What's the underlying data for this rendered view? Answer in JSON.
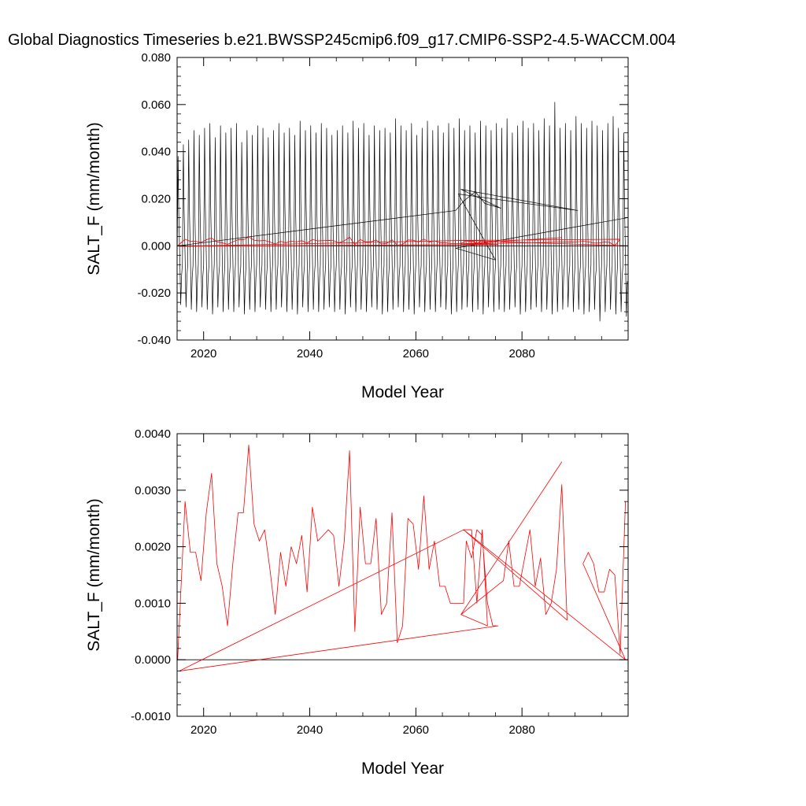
{
  "title": "Global Diagnostics Timeseries b.e21.BWSSP245cmip6.f09_g17.CMIP6-SSP2-4.5-WACCM.004",
  "colors": {
    "monthly": "#000000",
    "annual": "#ff0000",
    "zero_line": "#000000"
  },
  "chart_data": [
    {
      "type": "line",
      "panel": "top",
      "title": "Global Diagnostics Timeseries b.e21.BWSSP245cmip6.f09_g17.CMIP6-SSP2-4.5-WACCM.004",
      "xlabel": "Model Year",
      "ylabel": "SALT_F (mm/month)",
      "xlim": [
        2015,
        2100
      ],
      "ylim": [
        -0.04,
        0.08
      ],
      "xticks": [
        2020,
        2040,
        2060,
        2080
      ],
      "xtick_labels": [
        "2020",
        "2040",
        "2060",
        "2080"
      ],
      "yticks": [
        -0.04,
        -0.02,
        0.0,
        0.02,
        0.04,
        0.06,
        0.08
      ],
      "ytick_labels": [
        "-0.040",
        "-0.020",
        "0.000",
        "0.020",
        "0.040",
        "0.060",
        "0.080"
      ],
      "series": [
        {
          "name": "monthly",
          "color": "#000000",
          "pattern": "seasonal_cycle",
          "x_start": 2015.0,
          "x_end": 2100.0,
          "peaks": [
            0.038,
            0.043,
            0.045,
            0.049,
            0.047,
            0.05,
            0.052,
            0.046,
            0.051,
            0.048,
            0.05,
            0.052,
            0.044,
            0.049,
            0.047,
            0.051,
            0.05,
            0.046,
            0.049,
            0.052,
            0.048,
            0.05,
            0.047,
            0.053,
            0.049,
            0.051,
            0.048,
            0.052,
            0.05,
            0.047,
            0.049,
            0.051,
            0.048,
            0.053,
            0.05,
            0.052,
            0.047,
            0.051,
            0.049,
            0.05,
            0.048,
            0.054,
            0.051,
            0.049,
            0.052,
            0.047,
            0.05,
            0.053,
            0.049,
            0.051,
            0.048,
            0.052,
            0.05,
            0.054,
            0.049,
            0.051,
            0.048,
            0.053,
            0.051,
            0.049,
            0.052,
            0.05,
            0.054,
            0.048,
            0.051,
            0.053,
            0.05,
            0.052,
            0.049,
            0.054,
            0.051,
            0.061,
            0.05,
            0.052,
            0.049,
            0.055,
            0.052,
            0.05,
            0.053,
            0.051,
            0.049,
            0.052,
            0.055,
            0.05,
            0.048
          ],
          "troughs": [
            -0.025,
            -0.026,
            -0.027,
            -0.028,
            -0.026,
            -0.027,
            -0.029,
            -0.026,
            -0.028,
            -0.027,
            -0.028,
            -0.026,
            -0.029,
            -0.027,
            -0.028,
            -0.026,
            -0.027,
            -0.028,
            -0.027,
            -0.026,
            -0.028,
            -0.027,
            -0.029,
            -0.026,
            -0.028,
            -0.027,
            -0.028,
            -0.027,
            -0.026,
            -0.028,
            -0.027,
            -0.029,
            -0.026,
            -0.028,
            -0.027,
            -0.028,
            -0.026,
            -0.027,
            -0.029,
            -0.028,
            -0.027,
            -0.026,
            -0.028,
            -0.027,
            -0.029,
            -0.026,
            -0.028,
            -0.027,
            -0.028,
            -0.026,
            -0.027,
            -0.029,
            -0.028,
            -0.027,
            -0.026,
            -0.028,
            -0.027,
            -0.029,
            -0.026,
            -0.028,
            -0.027,
            -0.028,
            -0.027,
            -0.026,
            -0.029,
            -0.028,
            -0.027,
            -0.026,
            -0.028,
            -0.027,
            -0.029,
            -0.028,
            -0.027,
            -0.026,
            -0.028,
            -0.027,
            -0.029,
            -0.028,
            -0.027,
            -0.032,
            -0.028,
            -0.027,
            -0.029,
            -0.028,
            -0.03
          ]
        },
        {
          "name": "monthly-wrap",
          "color": "#000000",
          "x": [
            2015.2,
            2067.5,
            2069.0,
            2071.2,
            2073.0,
            2076.0,
            2068.5,
            2090.5,
            2068.0,
            2075.0,
            2067.5,
            2100.0
          ],
          "y": [
            0.0,
            0.015,
            0.019,
            0.023,
            0.018,
            0.016,
            0.024,
            0.015,
            0.022,
            -0.006,
            -0.001,
            0.012
          ]
        },
        {
          "name": "annual",
          "color": "#ff0000",
          "x": [
            2015.1,
            2016.5,
            2017.5,
            2018.5,
            2019.5,
            2020.5,
            2021.5,
            2022.5,
            2023.5,
            2024.5,
            2025.5,
            2026.5,
            2027.5,
            2028.5,
            2029.5,
            2030.5,
            2031.5,
            2032.5,
            2033.5,
            2034.5,
            2035.5,
            2036.5,
            2037.5,
            2038.5,
            2039.5,
            2040.5,
            2041.5,
            2042.5,
            2043.5,
            2044.5,
            2045.5,
            2046.5,
            2047.5,
            2048.5,
            2049.5,
            2050.5,
            2051.5,
            2052.5,
            2053.5,
            2054.5,
            2055.5,
            2056.5,
            2057.5,
            2058.5,
            2059.5,
            2060.5,
            2061.5,
            2062.5,
            2063.5,
            2064.5,
            2065.5,
            2066.5,
            2067.5,
            2068.5,
            2069.5,
            2070.5,
            2071.5,
            2072.5,
            2073.5,
            2074.5,
            2075.5,
            2015.4,
            2069.0,
            2070.5,
            2071.5,
            2072.5,
            2073.5,
            2068.5,
            2087.5,
            2068.5,
            2090.5,
            2091.5,
            2092.5,
            2093.5,
            2094.5,
            2095.5,
            2096.5,
            2097.5,
            2098.5,
            2069.0,
            2099.5
          ],
          "y": [
            0.0,
            0.0028,
            0.0019,
            0.0019,
            0.0014,
            0.0026,
            0.0033,
            0.0017,
            0.0013,
            0.0006,
            0.0017,
            0.0026,
            0.0026,
            0.0038,
            0.0024,
            0.0021,
            0.0023,
            0.0016,
            0.0008,
            0.0019,
            0.0013,
            0.002,
            0.0017,
            0.0022,
            0.0012,
            0.0027,
            0.0021,
            0.0022,
            0.0023,
            0.0022,
            0.0013,
            0.0021,
            0.0037,
            0.0005,
            0.0027,
            0.0017,
            0.0017,
            0.0025,
            0.0008,
            0.001,
            0.0026,
            0.0003,
            0.0006,
            0.0025,
            0.0024,
            0.0016,
            0.0029,
            0.0016,
            0.0021,
            0.0013,
            0.0013,
            0.001,
            0.001,
            0.001,
            0.0021,
            0.0018,
            0.0023,
            0.0022,
            0.001,
            0.0006,
            0.0006,
            -0.0002,
            0.0023,
            0.0023,
            0.001,
            0.0023,
            0.0006,
            0.0008,
            0.0035,
            0.0008,
            0.0017,
            0.0019,
            0.0017,
            0.0012,
            0.0012,
            0.0016,
            0.0015,
            0.0001,
            0.0028,
            0.0023,
            0.0
          ]
        }
      ]
    },
    {
      "type": "line",
      "panel": "bottom",
      "xlabel": "Model Year",
      "ylabel": "SALT_F (mm/month)",
      "xlim": [
        2015,
        2100
      ],
      "ylim": [
        -0.001,
        0.004
      ],
      "xticks": [
        2020,
        2040,
        2060,
        2080
      ],
      "xtick_labels": [
        "2020",
        "2040",
        "2060",
        "2080"
      ],
      "yticks": [
        -0.001,
        0.0,
        0.001,
        0.002,
        0.003,
        0.004
      ],
      "ytick_labels": [
        "-0.0010",
        "0.0000",
        "0.0010",
        "0.0020",
        "0.0030",
        "0.0040"
      ],
      "series": [
        {
          "name": "annual",
          "color": "#ff0000",
          "x": [
            2015.1,
            2016.5,
            2017.5,
            2018.5,
            2019.5,
            2020.5,
            2021.5,
            2022.5,
            2023.5,
            2024.5,
            2025.5,
            2026.5,
            2027.5,
            2028.5,
            2029.5,
            2030.5,
            2031.5,
            2032.5,
            2033.5,
            2034.5,
            2035.5,
            2036.5,
            2037.5,
            2038.5,
            2039.5,
            2040.5,
            2041.5,
            2042.5,
            2043.5,
            2044.5,
            2045.5,
            2046.5,
            2047.5,
            2048.5,
            2049.5,
            2050.5,
            2051.5,
            2052.5,
            2053.5,
            2054.5,
            2055.5,
            2056.5,
            2057.5,
            2058.5,
            2059.5,
            2060.5,
            2061.5,
            2062.5,
            2063.5,
            2064.5,
            2065.5,
            2066.5,
            2067.5,
            2068.5,
            2069.0,
            2069.5,
            2070.5,
            2071.5,
            2072.5,
            2073.5,
            2074.5,
            2075.5,
            2015.4,
            2069.0,
            2070.5,
            2071.5,
            2072.5,
            2073.5,
            2068.5,
            2087.5,
            2068.5,
            2076.5,
            2077.5,
            2078.5,
            2079.5,
            2080.5,
            2081.5,
            2082.5,
            2083.5,
            2084.5,
            2085.5,
            2086.5,
            2087.5,
            2088.5,
            2069.0,
            2099.5,
            2091.5,
            2092.5,
            2093.5,
            2094.5,
            2095.5,
            2096.5,
            2097.5,
            2098.5,
            2099.5
          ],
          "y": [
            0.0,
            0.0028,
            0.0019,
            0.0019,
            0.0014,
            0.0026,
            0.0033,
            0.0017,
            0.0013,
            0.0006,
            0.0017,
            0.0026,
            0.0026,
            0.0038,
            0.0024,
            0.0021,
            0.0023,
            0.0016,
            0.0008,
            0.0019,
            0.0013,
            0.002,
            0.0017,
            0.0022,
            0.0012,
            0.0027,
            0.0021,
            0.0022,
            0.0023,
            0.0022,
            0.0013,
            0.0021,
            0.0037,
            0.0005,
            0.0027,
            0.0017,
            0.0017,
            0.0025,
            0.0008,
            0.001,
            0.0026,
            0.0003,
            0.0006,
            0.0025,
            0.0024,
            0.0016,
            0.0029,
            0.0016,
            0.0021,
            0.0013,
            0.0013,
            0.001,
            0.001,
            0.001,
            0.001,
            0.0021,
            0.0018,
            0.0023,
            0.0022,
            0.001,
            0.0006,
            0.0006,
            -0.0002,
            0.0023,
            0.0023,
            0.001,
            0.0023,
            0.0006,
            0.0008,
            0.0035,
            0.0008,
            0.0014,
            0.0021,
            0.0013,
            0.0013,
            0.0018,
            0.0023,
            0.0013,
            0.0018,
            0.0008,
            0.001,
            0.0016,
            0.0031,
            0.0007,
            0.0023,
            0.0,
            0.0017,
            0.0019,
            0.0017,
            0.0012,
            0.0012,
            0.0016,
            0.0015,
            0.0001,
            0.0028
          ]
        }
      ]
    }
  ]
}
